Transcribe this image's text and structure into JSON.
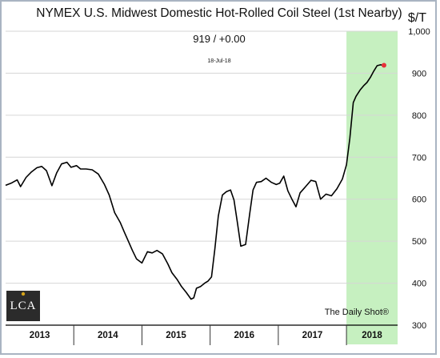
{
  "chart_data": {
    "type": "line",
    "title": "NYMEX U.S. Midwest Domestic Hot-Rolled Coil Steel (1st Nearby)",
    "ylabel": "$/T",
    "readout": "919  /  +0.00",
    "readout_date": "18-Jul-18",
    "ylim": [
      300,
      1000
    ],
    "yticks": [
      300,
      400,
      500,
      600,
      700,
      800,
      900,
      1000
    ],
    "ytick_labels": [
      "300",
      "400",
      "500",
      "600",
      "700",
      "800",
      "900",
      "1,000"
    ],
    "x_years": [
      "2013",
      "2014",
      "2015",
      "2016",
      "2017",
      "2018"
    ],
    "xlim": [
      2013.0,
      2018.75
    ],
    "grid": "horizontal",
    "highlight": {
      "from": 2018.0,
      "to": 2018.75,
      "color": "#c6f0c0"
    },
    "line_color": "#000000",
    "end_marker_color": "#e8303a",
    "credit": "The Daily Shot®",
    "logo_text": "LCA",
    "series": [
      {
        "x": [
          2013.0,
          2013.08,
          2013.17,
          2013.22,
          2013.3,
          2013.38,
          2013.46,
          2013.53,
          2013.6,
          2013.68,
          2013.75,
          2013.82,
          2013.9,
          2013.96,
          2014.04,
          2014.1,
          2014.18,
          2014.27,
          2014.36,
          2014.45,
          2014.52,
          2014.6,
          2014.68,
          2014.74,
          2014.8,
          2014.86,
          2014.92,
          2015.0,
          2015.08,
          2015.15,
          2015.22,
          2015.3,
          2015.38,
          2015.44,
          2015.52,
          2015.58,
          2015.65,
          2015.72,
          2015.76,
          2015.8,
          2015.86,
          2015.92,
          2015.97,
          2016.02,
          2016.07,
          2016.12,
          2016.18,
          2016.24,
          2016.3,
          2016.35,
          2016.4,
          2016.45,
          2016.52,
          2016.58,
          2016.63,
          2016.68,
          2016.75,
          2016.82,
          2016.9,
          2016.97,
          2017.02,
          2017.08,
          2017.14,
          2017.2,
          2017.26,
          2017.32,
          2017.4,
          2017.48,
          2017.55,
          2017.62,
          2017.7,
          2017.78,
          2017.86,
          2017.94,
          2018.0,
          2018.05,
          2018.1,
          2018.14,
          2018.2,
          2018.25,
          2018.3,
          2018.35,
          2018.4,
          2018.45,
          2018.5,
          2018.55
        ],
        "y": [
          633,
          638,
          646,
          630,
          652,
          665,
          675,
          678,
          668,
          632,
          663,
          684,
          688,
          676,
          680,
          672,
          672,
          670,
          660,
          635,
          610,
          568,
          545,
          522,
          500,
          478,
          458,
          448,
          475,
          472,
          478,
          470,
          446,
          425,
          408,
          392,
          378,
          362,
          365,
          388,
          392,
          400,
          405,
          415,
          482,
          560,
          610,
          618,
          622,
          598,
          545,
          488,
          492,
          565,
          622,
          640,
          642,
          650,
          640,
          635,
          638,
          655,
          620,
          600,
          582,
          615,
          630,
          645,
          642,
          600,
          612,
          608,
          625,
          648,
          682,
          745,
          830,
          845,
          860,
          870,
          878,
          890,
          905,
          918,
          920,
          919
        ]
      }
    ]
  }
}
